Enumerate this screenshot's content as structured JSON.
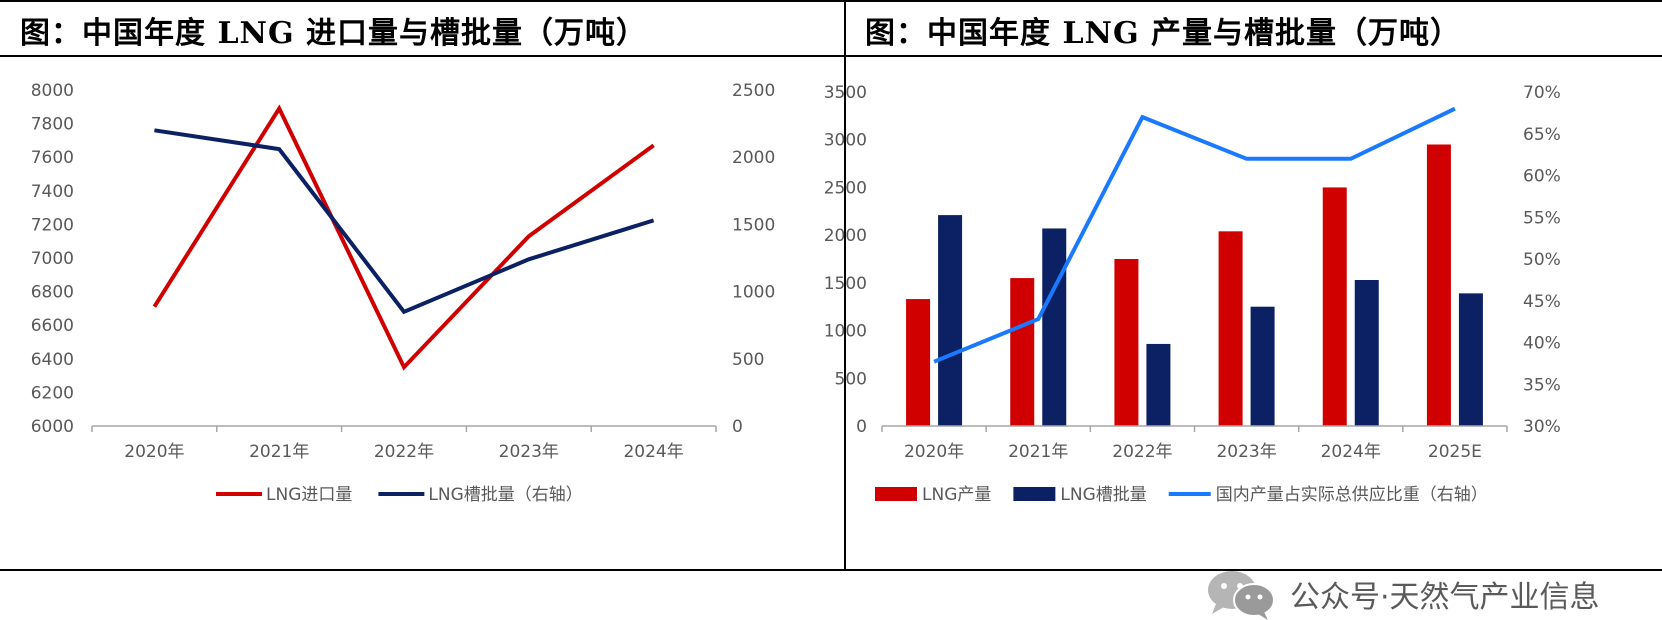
{
  "colors": {
    "red": "#d10000",
    "navy": "#0b2163",
    "blue": "#1a7aff",
    "axis": "#a6a6a6",
    "tick": "#595959"
  },
  "watermark": {
    "text": "公众号·天然气产业信息",
    "icon": "wechat-icon"
  },
  "chart_data": [
    {
      "type": "line",
      "title": "图：中国年度 LNG 进口量与槽批量（万吨）",
      "categories": [
        "2020年",
        "2021年",
        "2022年",
        "2023年",
        "2024年"
      ],
      "y_left": {
        "min": 6000,
        "max": 8000,
        "step": 200,
        "ticks": [
          "6000",
          "6200",
          "6400",
          "6600",
          "6800",
          "7000",
          "7200",
          "7400",
          "7600",
          "7800",
          "8000"
        ]
      },
      "y_right": {
        "min": 0,
        "max": 2500,
        "step": 500,
        "ticks": [
          "0",
          "500",
          "1000",
          "1500",
          "2000",
          "2500"
        ]
      },
      "series": [
        {
          "name": "LNG进口量",
          "axis": "left",
          "color": "#d10000",
          "values": [
            6710,
            7890,
            6350,
            7130,
            7670
          ]
        },
        {
          "name": "LNG槽批量（右轴）",
          "axis": "right",
          "color": "#0b2163",
          "values": [
            2200,
            2060,
            850,
            1240,
            1530
          ]
        }
      ]
    },
    {
      "type": "bar+line",
      "title": "图：中国年度 LNG 产量与槽批量（万吨）",
      "categories": [
        "2020年",
        "2021年",
        "2022年",
        "2023年",
        "2024年",
        "2025E"
      ],
      "y_left": {
        "min": 0,
        "max": 3500,
        "step": 500,
        "ticks": [
          "0",
          "500",
          "1000",
          "1500",
          "2000",
          "2500",
          "3000",
          "3500"
        ]
      },
      "y_right": {
        "min": 30,
        "max": 70,
        "step": 5,
        "ticks": [
          "30%",
          "35%",
          "40%",
          "45%",
          "50%",
          "55%",
          "60%",
          "65%",
          "70%"
        ]
      },
      "series": [
        {
          "name": "LNG产量",
          "type": "bar",
          "axis": "left",
          "color": "#d10000",
          "values": [
            1330,
            1550,
            1750,
            2040,
            2500,
            2950
          ]
        },
        {
          "name": "LNG槽批量",
          "type": "bar",
          "axis": "left",
          "color": "#0b2163",
          "values": [
            2210,
            2070,
            860,
            1250,
            1530,
            1390
          ]
        },
        {
          "name": "国内产量占实际总供应比重（右轴）",
          "type": "line",
          "axis": "right",
          "color": "#1a7aff",
          "values": [
            37.7,
            42.8,
            67.0,
            62.0,
            62.0,
            68.0
          ]
        }
      ]
    }
  ]
}
